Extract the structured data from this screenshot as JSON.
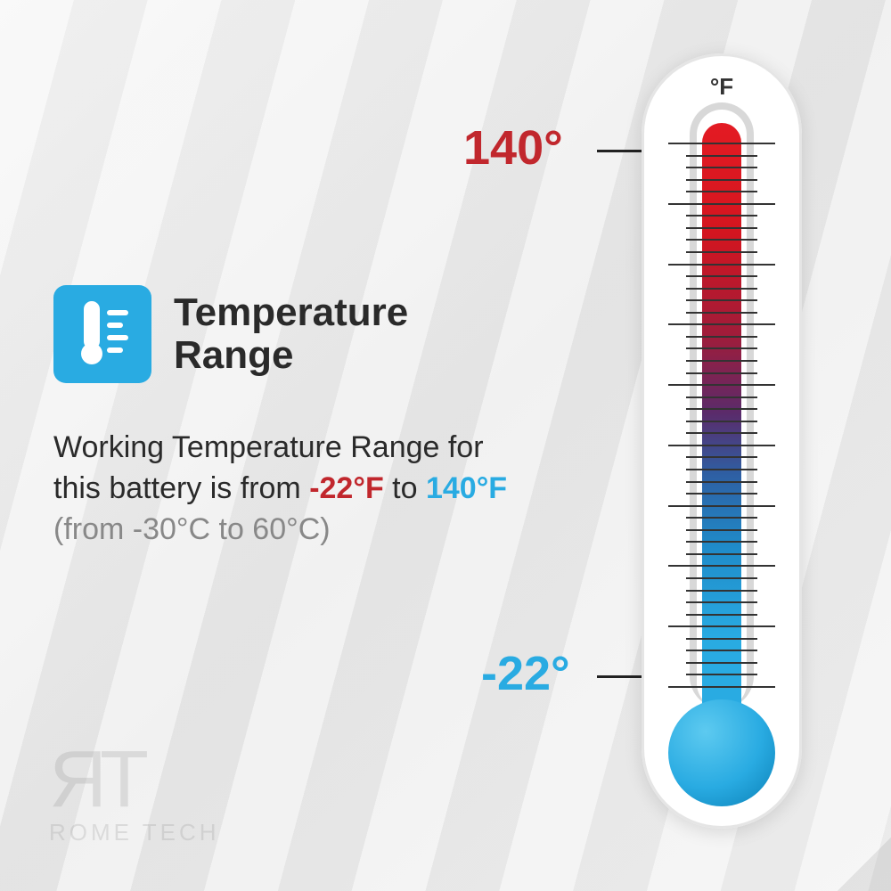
{
  "title": "Temperature\nRange",
  "description": {
    "prefix": "Working Temperature Range for this battery is from ",
    "low_f": "-22°F",
    "mid": " to ",
    "high_f": "140°F",
    "celsius": "(from -30°C to 60°C)"
  },
  "thermometer": {
    "unit": "°F",
    "high_label": "140°",
    "low_label": "-22°",
    "colors": {
      "hot": "#c1272d",
      "cold": "#29abe2",
      "tube": "#d8d8d8",
      "body": "#ffffff"
    },
    "tick_count": 45,
    "major_every": 5
  },
  "icon": {
    "bg_color": "#29abe2",
    "fg_color": "#ffffff"
  },
  "logo": {
    "initials": "ЯT",
    "name": "ROME TECH"
  }
}
